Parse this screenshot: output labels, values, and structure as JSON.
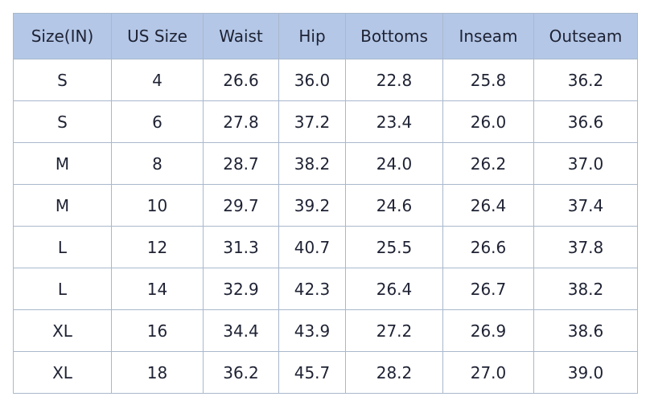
{
  "table": {
    "header": [
      "Size(IN)",
      "US Size",
      "Waist",
      "Hip",
      "Bottoms",
      "Inseam",
      "Outseam"
    ],
    "rows": [
      [
        "S",
        "4",
        "26.6",
        "36.0",
        "22.8",
        "25.8",
        "36.2"
      ],
      [
        "S",
        "6",
        "27.8",
        "37.2",
        "23.4",
        "26.0",
        "36.6"
      ],
      [
        "M",
        "8",
        "28.7",
        "38.2",
        "24.0",
        "26.2",
        "37.0"
      ],
      [
        "M",
        "10",
        "29.7",
        "39.2",
        "24.6",
        "26.4",
        "37.4"
      ],
      [
        "L",
        "12",
        "31.3",
        "40.7",
        "25.5",
        "26.6",
        "37.8"
      ],
      [
        "L",
        "14",
        "32.9",
        "42.3",
        "26.4",
        "26.7",
        "38.2"
      ],
      [
        "XL",
        "16",
        "34.4",
        "43.9",
        "27.2",
        "26.9",
        "38.6"
      ],
      [
        "XL",
        "18",
        "36.2",
        "45.7",
        "28.2",
        "27.0",
        "39.0"
      ]
    ]
  }
}
